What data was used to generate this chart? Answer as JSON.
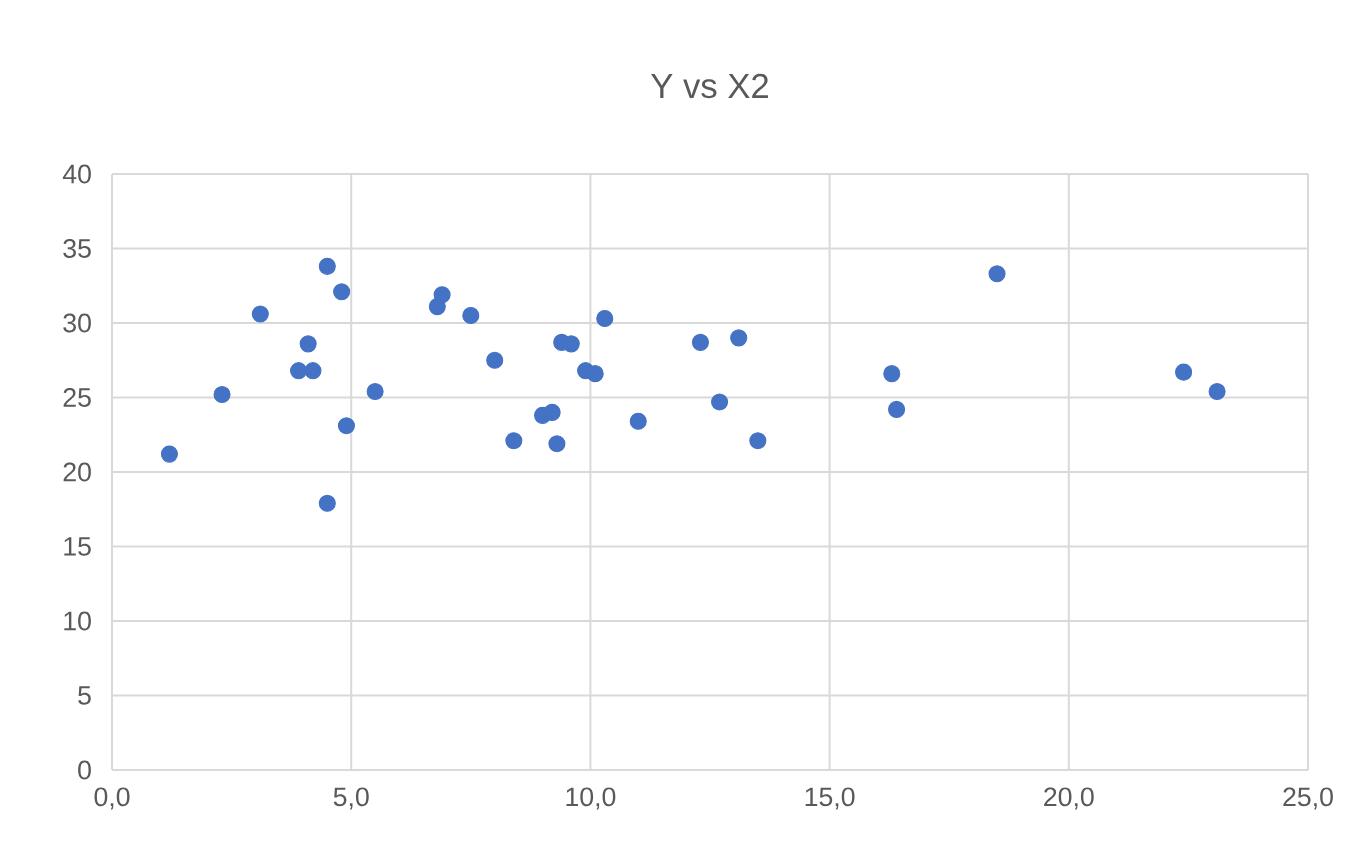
{
  "chart_data": {
    "type": "scatter",
    "title": "Y vs X2",
    "x": [
      1.2,
      2.3,
      3.1,
      3.9,
      4.1,
      4.2,
      4.5,
      4.5,
      4.8,
      4.9,
      5.5,
      6.8,
      6.9,
      7.5,
      8.0,
      8.4,
      9.0,
      9.2,
      9.3,
      9.4,
      9.6,
      9.9,
      10.1,
      10.3,
      11.0,
      12.3,
      12.7,
      13.1,
      13.5,
      16.3,
      16.4,
      18.5,
      22.4,
      23.1
    ],
    "values": [
      21.2,
      25.2,
      30.6,
      26.8,
      28.6,
      26.8,
      33.8,
      17.9,
      32.1,
      23.1,
      25.4,
      31.1,
      31.9,
      30.5,
      27.5,
      22.1,
      23.8,
      24.0,
      21.9,
      28.7,
      28.6,
      26.8,
      26.6,
      30.3,
      23.4,
      28.7,
      24.7,
      29.0,
      22.1,
      26.6,
      24.2,
      33.3,
      26.7,
      25.4
    ],
    "color": "#4472c4",
    "marker": "circle",
    "grid": true,
    "xlim": [
      0,
      25
    ],
    "ylim": [
      0,
      40
    ],
    "xticks": [
      {
        "value": 0,
        "label": "0,0"
      },
      {
        "value": 5,
        "label": "5,0"
      },
      {
        "value": 10,
        "label": "10,0"
      },
      {
        "value": 15,
        "label": "15,0"
      },
      {
        "value": 20,
        "label": "20,0"
      },
      {
        "value": 25,
        "label": "25,0"
      }
    ],
    "yticks": [
      0,
      5,
      10,
      15,
      20,
      25,
      30,
      35,
      40
    ]
  }
}
